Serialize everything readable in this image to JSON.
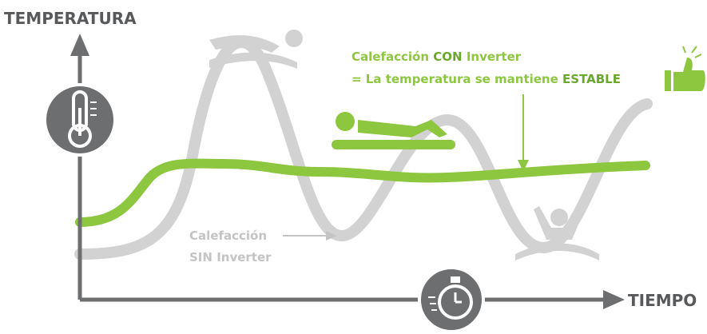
{
  "axes": {
    "y_label": "TEMPERATURA",
    "x_label": "TIEMPO"
  },
  "annotations": {
    "with_inverter": {
      "line1": [
        "Calefacción",
        "CON",
        "Inverter"
      ],
      "line2": [
        "= La temperatura se mantiene",
        "ESTABLE"
      ]
    },
    "without_inverter": {
      "line1": "Calefacción",
      "line2": [
        "SIN",
        "Inverter"
      ]
    }
  }
}
